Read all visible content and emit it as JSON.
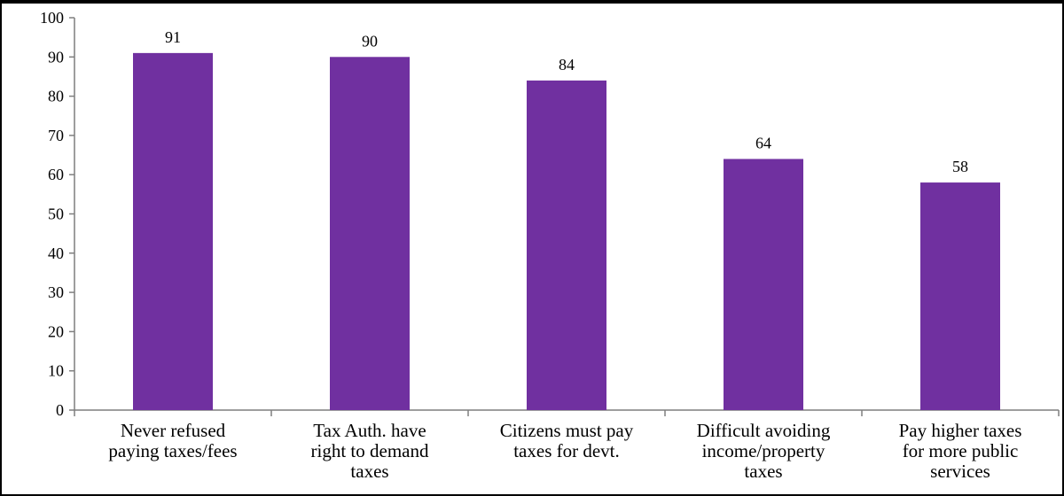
{
  "chart_data": {
    "type": "bar",
    "title": "",
    "xlabel": "",
    "ylabel": "",
    "categories": [
      [
        "Never refused",
        "paying taxes/fees"
      ],
      [
        "Tax Auth. have",
        "right to demand",
        "taxes"
      ],
      [
        "Citizens must pay",
        "taxes for devt."
      ],
      [
        "Difficult avoiding",
        "income/property",
        "taxes"
      ],
      [
        "Pay higher taxes",
        "for more public",
        "services"
      ]
    ],
    "values": [
      91,
      90,
      84,
      64,
      58
    ],
    "data_labels": [
      "91",
      "90",
      "84",
      "64",
      "58"
    ],
    "ylim": [
      0,
      100
    ],
    "yticks": [
      0,
      10,
      20,
      30,
      40,
      50,
      60,
      70,
      80,
      90,
      100
    ],
    "grid": false,
    "legend": "none",
    "bar_color": "#7030A0"
  }
}
